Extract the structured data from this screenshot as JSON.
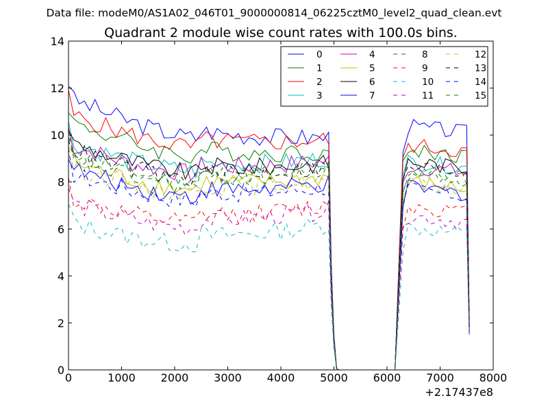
{
  "chart_data": {
    "type": "line",
    "suptitle": "Data file: modeM0/AS1A02_046T01_9000000814_06225cztM0_level2_quad_clean.evt",
    "title": "Quadrant 2 module wise count rates with 100.0s bins.",
    "xlabel": "",
    "ylabel": "",
    "x_offset_label": "+2.17437e8",
    "xlim": [
      0,
      8000
    ],
    "ylim": [
      0,
      14
    ],
    "x_ticks": [
      0,
      1000,
      2000,
      3000,
      4000,
      5000,
      6000,
      7000,
      8000
    ],
    "y_ticks": [
      0,
      2,
      4,
      6,
      8,
      10,
      12,
      14
    ],
    "grid": false,
    "legend_placement": "top-right",
    "legend_columns": 4,
    "segments": [
      {
        "x_start": 0,
        "x_end": 4900,
        "step": 100
      },
      {
        "x_start": 6300,
        "x_end": 7500,
        "step": 100
      }
    ],
    "gap": {
      "drop_x": [
        4900,
        4950,
        5000,
        5050,
        5100
      ],
      "flat_x": [
        5100,
        6150
      ],
      "rise_x": [
        6150,
        6300
      ]
    },
    "tail_x": [
      7500,
      7550
    ],
    "series": [
      {
        "name": "0",
        "color": "#0000ff",
        "style": "solid",
        "level1": 11.6,
        "end1": 9.9,
        "level2": 10.2,
        "tail": 1.8
      },
      {
        "name": "1",
        "color": "#008000",
        "style": "solid",
        "level1": 10.6,
        "end1": 9.3,
        "level2": 9.2,
        "tail": 2.0
      },
      {
        "name": "2",
        "color": "#ff0000",
        "style": "solid",
        "level1": 10.9,
        "end1": 9.8,
        "level2": 9.4,
        "tail": 2.1
      },
      {
        "name": "3",
        "color": "#00bfbf",
        "style": "solid",
        "level1": 9.7,
        "end1": 9.0,
        "level2": 8.7,
        "tail": 1.9
      },
      {
        "name": "4",
        "color": "#bf00bf",
        "style": "solid",
        "level1": 9.6,
        "end1": 8.9,
        "level2": 8.5,
        "tail": 1.9
      },
      {
        "name": "5",
        "color": "#bfbf00",
        "style": "solid",
        "level1": 8.9,
        "end1": 8.2,
        "level2": 7.8,
        "tail": 1.7
      },
      {
        "name": "6",
        "color": "#000000",
        "style": "solid",
        "level1": 9.7,
        "end1": 8.8,
        "level2": 8.7,
        "tail": 1.9
      },
      {
        "name": "7",
        "color": "#0000ff",
        "style": "solid",
        "level1": 8.6,
        "end1": 7.9,
        "level2": 7.6,
        "tail": 1.6
      },
      {
        "name": "8",
        "color": "#008000",
        "style": "dashed",
        "level1": 9.2,
        "end1": 8.6,
        "level2": 8.3,
        "tail": 1.8
      },
      {
        "name": "9",
        "color": "#ff0000",
        "style": "dashed",
        "level1": 7.3,
        "end1": 7.0,
        "level2": 6.8,
        "tail": 1.6
      },
      {
        "name": "10",
        "color": "#00bfbf",
        "style": "dashed",
        "level1": 6.3,
        "end1": 6.2,
        "level2": 5.9,
        "tail": 1.5
      },
      {
        "name": "11",
        "color": "#bf00bf",
        "style": "dashed",
        "level1": 7.1,
        "end1": 6.8,
        "level2": 6.4,
        "tail": 1.5
      },
      {
        "name": "12",
        "color": "#bfbf00",
        "style": "dashed",
        "level1": 8.7,
        "end1": 8.1,
        "level2": 7.8,
        "tail": 1.7
      },
      {
        "name": "13",
        "color": "#000000",
        "style": "dashed",
        "level1": 9.4,
        "end1": 8.6,
        "level2": 8.5,
        "tail": 1.8
      },
      {
        "name": "14",
        "color": "#0000ff",
        "style": "dashed",
        "level1": 8.4,
        "end1": 7.8,
        "level2": 7.5,
        "tail": 1.6
      },
      {
        "name": "15",
        "color": "#008000",
        "style": "dashed",
        "level1": 9.0,
        "end1": 8.5,
        "level2": 8.2,
        "tail": 1.8
      }
    ]
  }
}
